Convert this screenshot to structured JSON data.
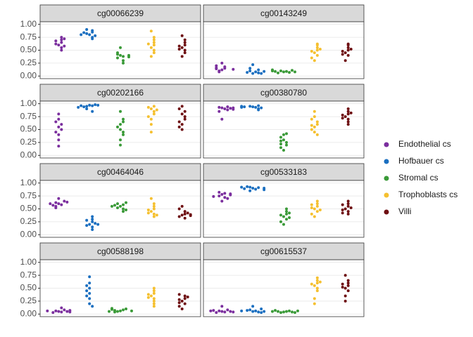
{
  "chart_data": {
    "type": "beeswarm",
    "series": [
      {
        "name": "Endothelial cs",
        "color": "#7b2f9e"
      },
      {
        "name": "Hofbauer cs",
        "color": "#1b6fc0"
      },
      {
        "name": "Stromal cs",
        "color": "#3a9a38"
      },
      {
        "name": "Trophoblasts cs",
        "color": "#f5c030"
      },
      {
        "name": "Villi",
        "color": "#6e0f12"
      }
    ],
    "ylim": [
      -0.05,
      1.05
    ],
    "yticks": [
      {
        "value": 0,
        "label": "0.00"
      },
      {
        "value": 0.25,
        "label": "0.25"
      },
      {
        "value": 0.5,
        "label": "0.50"
      },
      {
        "value": 0.75,
        "label": "0.75"
      },
      {
        "value": 1,
        "label": "1.00"
      }
    ],
    "grid": true,
    "legend": "right",
    "panels": [
      {
        "title": "cg00066239",
        "values": [
          [
            0.6,
            0.65,
            0.7,
            0.55,
            0.62,
            0.75,
            0.5,
            0.68,
            0.58,
            0.72
          ],
          [
            0.8,
            0.85,
            0.75,
            0.88,
            0.82,
            0.78,
            0.9,
            0.72,
            0.84,
            0.8
          ],
          [
            0.4,
            0.38,
            0.42,
            0.35,
            0.3,
            0.45,
            0.55,
            0.25,
            0.4,
            0.37
          ],
          [
            0.55,
            0.6,
            0.65,
            0.5,
            0.45,
            0.7,
            0.87,
            0.38,
            0.62,
            0.75
          ],
          [
            0.55,
            0.6,
            0.5,
            0.65,
            0.45,
            0.7,
            0.78,
            0.38,
            0.58,
            0.52
          ]
        ]
      },
      {
        "title": "cg00143249",
        "values": [
          [
            0.12,
            0.15,
            0.1,
            0.18,
            0.25,
            0.14,
            0.08,
            0.16,
            0.13,
            0.2
          ],
          [
            0.05,
            0.08,
            0.1,
            0.06,
            0.22,
            0.07,
            0.12,
            0.05,
            0.15,
            0.09
          ],
          [
            0.08,
            0.09,
            0.1,
            0.07,
            0.06,
            0.11,
            0.09,
            0.08,
            0.1,
            0.12
          ],
          [
            0.45,
            0.5,
            0.55,
            0.6,
            0.4,
            0.3,
            0.62,
            0.48,
            0.52,
            0.35
          ],
          [
            0.45,
            0.5,
            0.55,
            0.6,
            0.4,
            0.3,
            0.62,
            0.48,
            0.52,
            0.42
          ]
        ]
      },
      {
        "title": "cg00202166",
        "values": [
          [
            0.55,
            0.6,
            0.4,
            0.5,
            0.3,
            0.18,
            0.7,
            0.8,
            0.45,
            0.65
          ],
          [
            0.97,
            0.96,
            0.95,
            0.98,
            0.94,
            0.9,
            0.85,
            0.97,
            0.96,
            0.93
          ],
          [
            0.6,
            0.65,
            0.5,
            0.45,
            0.3,
            0.85,
            0.7,
            0.2,
            0.55,
            0.4
          ],
          [
            0.9,
            0.85,
            0.95,
            0.8,
            0.7,
            0.45,
            0.6,
            0.93,
            0.88,
            0.75
          ],
          [
            0.8,
            0.75,
            0.85,
            0.6,
            0.5,
            0.95,
            0.7,
            0.65,
            0.55,
            0.9
          ]
        ]
      },
      {
        "title": "cg00380780",
        "values": [
          [
            0.92,
            0.9,
            0.93,
            0.88,
            0.7,
            0.85,
            0.94,
            0.91,
            0.89,
            0.92
          ],
          [
            0.94,
            0.93,
            0.95,
            0.9,
            0.96,
            0.92,
            0.88,
            0.94,
            0.93,
            0.95
          ],
          [
            0.3,
            0.25,
            0.2,
            0.4,
            0.1,
            0.15,
            0.35,
            0.42,
            0.28,
            0.22
          ],
          [
            0.55,
            0.6,
            0.65,
            0.45,
            0.4,
            0.75,
            0.85,
            0.58,
            0.7,
            0.5
          ],
          [
            0.75,
            0.8,
            0.85,
            0.7,
            0.65,
            0.9,
            0.78,
            0.6,
            0.82,
            0.72
          ]
        ]
      },
      {
        "title": "cg00464046",
        "values": [
          [
            0.6,
            0.58,
            0.62,
            0.55,
            0.7,
            0.65,
            0.57,
            0.6,
            0.52,
            0.63
          ],
          [
            0.2,
            0.25,
            0.15,
            0.3,
            0.35,
            0.18,
            0.1,
            0.22,
            0.28,
            0.2
          ],
          [
            0.55,
            0.58,
            0.5,
            0.6,
            0.45,
            0.52,
            0.57,
            0.62,
            0.55,
            0.48
          ],
          [
            0.45,
            0.5,
            0.4,
            0.55,
            0.35,
            0.7,
            0.48,
            0.6,
            0.42,
            0.38
          ],
          [
            0.38,
            0.4,
            0.35,
            0.45,
            0.55,
            0.32,
            0.42,
            0.37,
            0.5,
            0.39
          ]
        ]
      },
      {
        "title": "cg00533183",
        "values": [
          [
            0.78,
            0.8,
            0.75,
            0.72,
            0.65,
            0.82,
            0.77,
            0.7,
            0.79,
            0.74
          ],
          [
            0.9,
            0.88,
            0.92,
            0.91,
            0.85,
            0.93,
            0.89,
            0.9,
            0.87,
            0.92
          ],
          [
            0.35,
            0.4,
            0.3,
            0.45,
            0.2,
            0.5,
            0.25,
            0.38,
            0.42,
            0.33
          ],
          [
            0.5,
            0.55,
            0.45,
            0.6,
            0.35,
            0.4,
            0.65,
            0.52,
            0.58,
            0.48
          ],
          [
            0.5,
            0.55,
            0.45,
            0.6,
            0.4,
            0.65,
            0.48,
            0.52,
            0.58,
            0.42
          ]
        ]
      },
      {
        "title": "cg00588198",
        "values": [
          [
            0.05,
            0.04,
            0.06,
            0.08,
            0.12,
            0.03,
            0.05,
            0.07,
            0.04,
            0.06
          ],
          [
            0.4,
            0.5,
            0.3,
            0.45,
            0.2,
            0.6,
            0.72,
            0.35,
            0.15,
            0.55
          ],
          [
            0.06,
            0.08,
            0.05,
            0.1,
            0.07,
            0.04,
            0.09,
            0.06,
            0.11,
            0.05
          ],
          [
            0.35,
            0.4,
            0.3,
            0.25,
            0.45,
            0.2,
            0.5,
            0.32,
            0.15,
            0.38
          ],
          [
            0.25,
            0.3,
            0.2,
            0.35,
            0.1,
            0.15,
            0.28,
            0.33,
            0.22,
            0.38
          ]
        ]
      },
      {
        "title": "cg00615537",
        "values": [
          [
            0.05,
            0.04,
            0.06,
            0.08,
            0.15,
            0.03,
            0.05,
            0.07,
            0.04,
            0.06
          ],
          [
            0.05,
            0.06,
            0.08,
            0.04,
            0.15,
            0.07,
            0.03,
            0.1,
            0.05,
            0.06
          ],
          [
            0.04,
            0.05,
            0.03,
            0.06,
            0.05,
            0.04,
            0.07,
            0.03,
            0.05,
            0.06
          ],
          [
            0.55,
            0.6,
            0.5,
            0.65,
            0.3,
            0.2,
            0.7,
            0.58,
            0.45,
            0.62
          ],
          [
            0.5,
            0.55,
            0.6,
            0.45,
            0.65,
            0.35,
            0.75,
            0.25,
            0.52,
            0.58
          ]
        ]
      }
    ]
  }
}
